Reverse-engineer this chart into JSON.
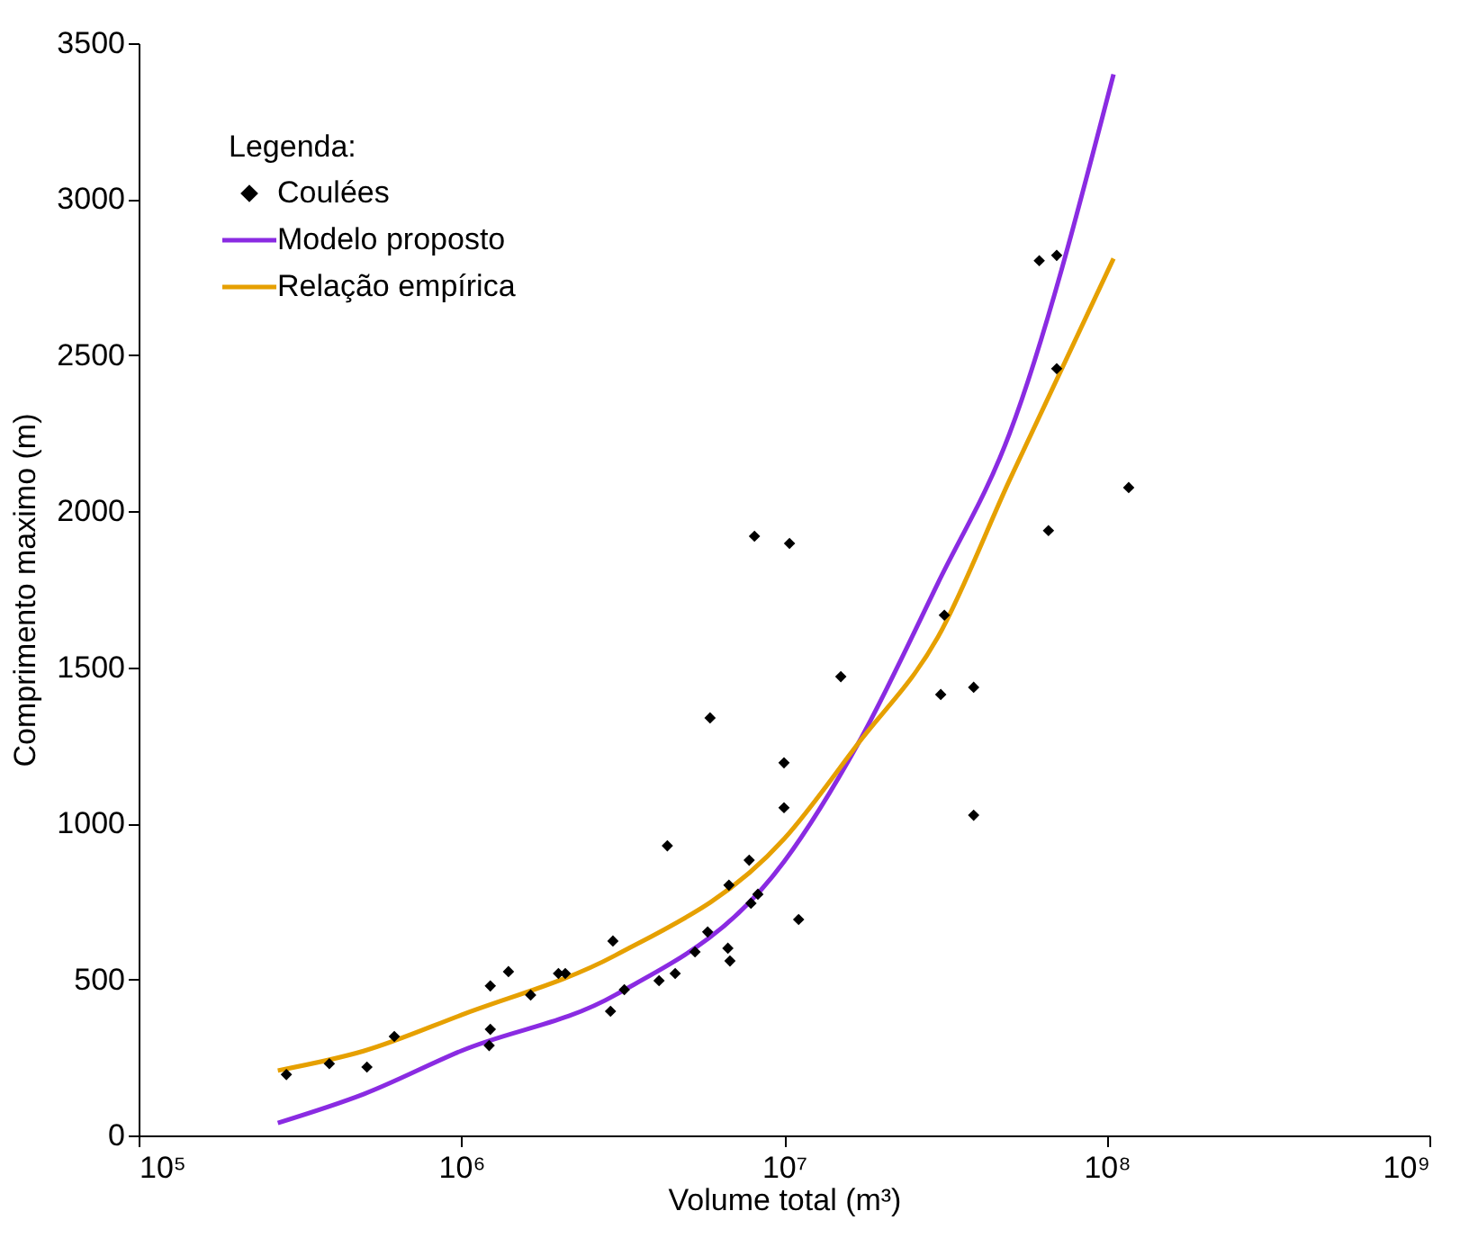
{
  "chart_data": {
    "type": "scatter",
    "xlabel": "Volume total (m³)",
    "ylabel": "Comprimento maximo (m)",
    "legend_title": "Legenda:",
    "legend": "top left",
    "grid": false,
    "log": "x",
    "xlim": [
      100000,
      1000000000
    ],
    "xticks": [
      {
        "value": 100000,
        "label": "10⁵"
      },
      {
        "value": 1000000,
        "label": "10⁶"
      },
      {
        "value": 10000000,
        "label": "10⁷"
      },
      {
        "value": 100000000,
        "label": "10⁸"
      },
      {
        "value": 1000000000,
        "label": "10⁹"
      }
    ],
    "ylim": [
      0,
      3500
    ],
    "yticks": [
      0,
      500,
      1000,
      1500,
      2000,
      2500,
      3000,
      3500
    ],
    "series": [
      {
        "name": "Coulées",
        "marker": "diamond",
        "color": "#000000",
        "x": [
          287000,
          390000,
          510000,
          620000,
          1220000,
          1230000,
          1230000,
          1400000,
          1640000,
          2000000,
          2100000,
          2900000,
          2950000,
          3200000,
          4100000,
          4600000,
          5300000,
          5800000,
          6700000,
          6800000,
          6750000,
          7900000,
          8300000,
          7800000,
          11100000,
          10000000,
          10000000,
          5900000,
          8100000,
          10400000,
          15000000,
          4350000,
          31400000,
          30600000,
          38700000,
          38700000,
          66000000,
          61800000,
          70000000,
          70000000,
          117000000
        ],
        "values": [
          195,
          230,
          219,
          317,
          288,
          340,
          479,
          525,
          450,
          519,
          519,
          398,
          623,
          467,
          496,
          519,
          588,
          652,
          600,
          559,
          802,
          744,
          773,
          882,
          692,
          1050,
          1194,
          1338,
          1920,
          1897,
          1470,
          928,
          1667,
          1413,
          1436,
          1026,
          1938,
          2803,
          2820,
          2457,
          2076
        ]
      },
      {
        "name": "Modelo proposto",
        "type": "line",
        "color": "#8a2be2",
        "x": [
          270000,
          500000,
          1000000,
          3000000,
          10000000,
          17000000,
          30000000,
          50000000,
          105000000
        ],
        "values": [
          40,
          133,
          271,
          450,
          877,
          1257,
          1770,
          2249,
          3400
        ]
      },
      {
        "name": "Relação empírica",
        "type": "line",
        "color": "#e6a000",
        "x": [
          270000,
          500000,
          1000000,
          3000000,
          10000000,
          17000000,
          30000000,
          50000000,
          105000000
        ],
        "values": [
          208,
          271,
          386,
          577,
          950,
          1257,
          1597,
          2100,
          2810
        ]
      }
    ]
  }
}
